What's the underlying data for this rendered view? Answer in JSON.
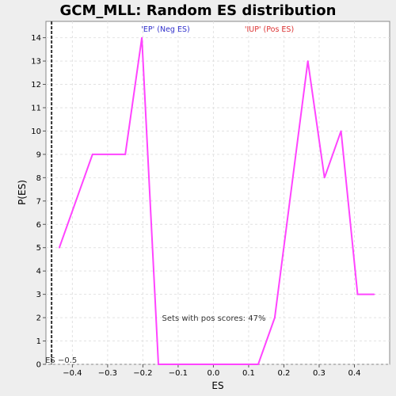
{
  "chart_data": {
    "type": "line",
    "title": "GCM_MLL: Random ES distribution",
    "xlabel": "ES",
    "ylabel": "P(ES)",
    "xlim": [
      -0.475,
      0.5
    ],
    "ylim": [
      0,
      14.7
    ],
    "x_ticks": [
      -0.4,
      -0.3,
      -0.2,
      -0.1,
      0.0,
      0.1,
      0.2,
      0.3,
      0.4
    ],
    "x_tick_labels": [
      "−0.4",
      "−0.3",
      "−0.2",
      "−0.1",
      "0.0",
      "0.1",
      "0.2",
      "0.3",
      "0.4"
    ],
    "y_ticks": [
      0,
      1,
      2,
      3,
      4,
      5,
      6,
      7,
      8,
      9,
      10,
      11,
      12,
      13,
      14
    ],
    "y_tick_labels": [
      "0",
      "1",
      "2",
      "3",
      "4",
      "5",
      "6",
      "7",
      "8",
      "9",
      "10",
      "11",
      "12",
      "13",
      "14"
    ],
    "grid": true,
    "series": [
      {
        "color": "#ff44ff",
        "x": [
          -0.437,
          -0.343,
          -0.25,
          -0.203,
          -0.156,
          0.127,
          0.174,
          0.268,
          0.315,
          0.362,
          0.409,
          0.456
        ],
        "y": [
          5,
          9,
          9,
          14,
          0,
          0,
          2,
          13,
          8,
          10,
          3,
          3
        ]
      }
    ],
    "es_marker": {
      "x": -0.459,
      "label": "ES −0.5",
      "color": "#333333"
    },
    "annotations": {
      "neg_label": "'EP' (Neg ES)",
      "neg_color": "#3333cc",
      "pos_label": "'IUP' (Pos ES)",
      "pos_color": "#dd3333",
      "pos_fraction_text": "Sets with pos scores: 47%"
    }
  }
}
